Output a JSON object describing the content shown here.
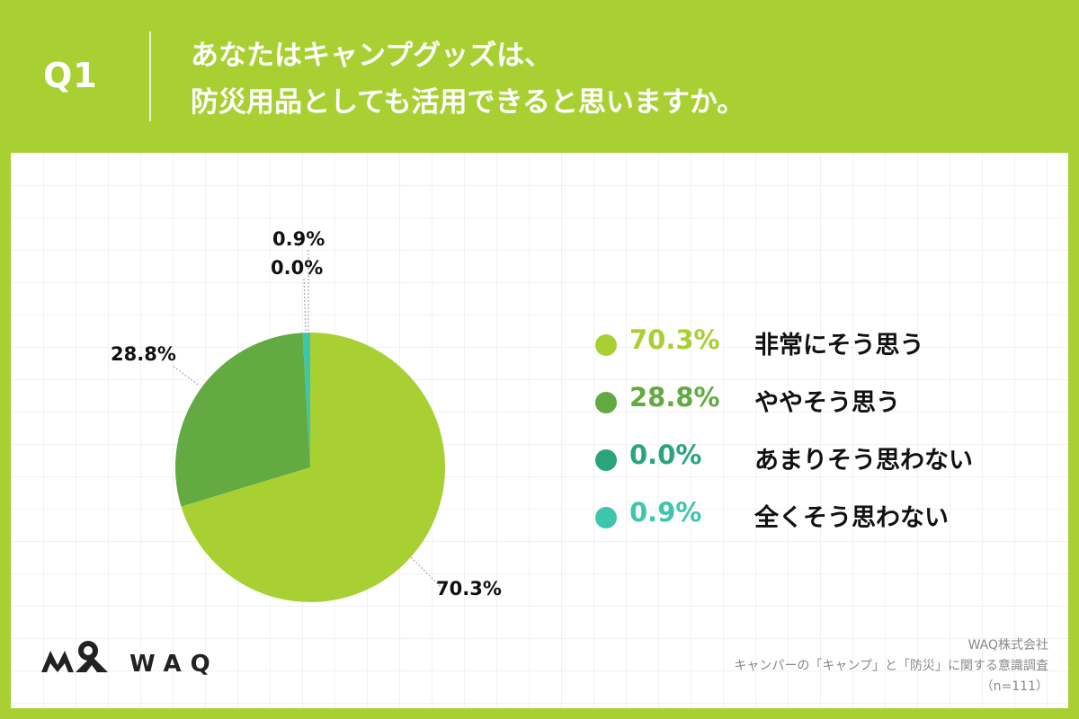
{
  "header": {
    "q_label": "Q1",
    "title_line1": "あなたはキャンプグッズは、",
    "title_line2": "防災用品としても活用できると思いますか。"
  },
  "chart_data": {
    "type": "pie",
    "slices": [
      {
        "label": "非常にそう思う",
        "value": 70.3,
        "display": "70.3%",
        "color": "#a9d032"
      },
      {
        "label": "ややそう思う",
        "value": 28.8,
        "display": "28.8%",
        "color": "#63aa42"
      },
      {
        "label": "あまりそう思わない",
        "value": 0.0,
        "display": "0.0%",
        "color": "#2aa57b"
      },
      {
        "label": "全くそう思わない",
        "value": 0.9,
        "display": "0.9%",
        "color": "#3ec6ad"
      }
    ],
    "legend_position": "right"
  },
  "logo": {
    "text": "WAQ"
  },
  "footer": {
    "company": "WAQ株式会社",
    "survey": "キャンパーの「キャンプ」と「防災」に関する意識調査",
    "sample": "（n=111）"
  }
}
